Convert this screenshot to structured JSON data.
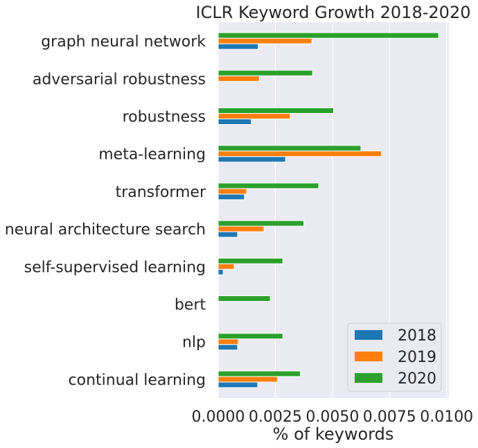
{
  "chart_data": {
    "type": "bar",
    "orientation": "horizontal",
    "title": "ICLR Keyword Growth 2018-2020",
    "xlabel": "% of keywords",
    "ylabel": "",
    "xlim": [
      0,
      0.0101
    ],
    "xticks": [
      0.0,
      0.0025,
      0.005,
      0.0075,
      0.01
    ],
    "xtick_labels": [
      "0.0000",
      "0.0025",
      "0.0050",
      "0.0075",
      "0.0100"
    ],
    "grid": true,
    "legend_position": "bottom-right",
    "categories": [
      "graph neural network",
      "adversarial robustness",
      "robustness",
      "meta-learning",
      "transformer",
      "neural architecture search",
      "self-supervised learning",
      "bert",
      "nlp",
      "continual learning"
    ],
    "series": [
      {
        "name": "2018",
        "color": "#1f77b4",
        "values": [
          0.00175,
          0.0,
          0.00145,
          0.00295,
          0.00115,
          0.00085,
          0.00022,
          0.0,
          0.00085,
          0.00173
        ]
      },
      {
        "name": "2019",
        "color": "#ff7f0e",
        "values": [
          0.0041,
          0.0018,
          0.00315,
          0.00715,
          0.00125,
          0.002,
          0.0007,
          0.0,
          0.00088,
          0.0026
        ]
      },
      {
        "name": "2020",
        "color": "#2ca02c",
        "values": [
          0.00965,
          0.00413,
          0.00505,
          0.00625,
          0.0044,
          0.00375,
          0.00283,
          0.00228,
          0.00283,
          0.0036
        ]
      }
    ]
  }
}
